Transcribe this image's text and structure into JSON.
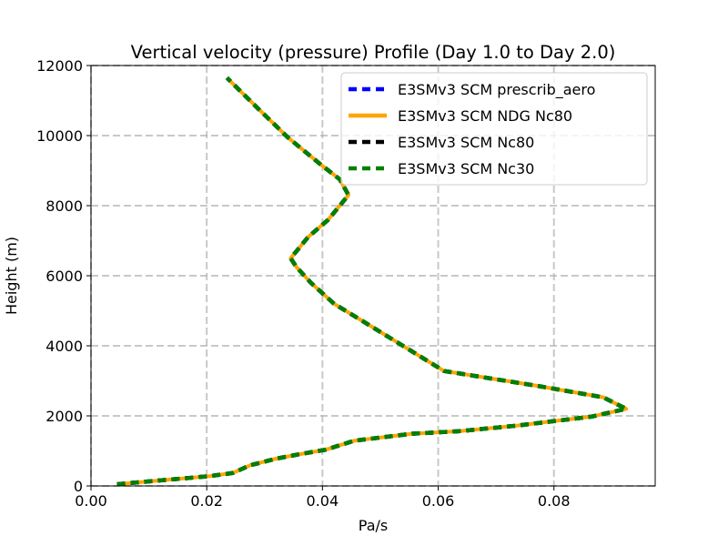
{
  "chart_data": {
    "type": "line",
    "title": "Vertical velocity (pressure) Profile (Day 1.0 to Day 2.0)",
    "xlabel": "Pa/s",
    "ylabel": "Height (m)",
    "xlim": [
      0.0,
      0.0975
    ],
    "ylim": [
      0,
      12000
    ],
    "xticks": [
      0.0,
      0.02,
      0.04,
      0.06,
      0.08
    ],
    "xtick_labels": [
      "0.00",
      "0.02",
      "0.04",
      "0.06",
      "0.08"
    ],
    "yticks": [
      0,
      2000,
      4000,
      6000,
      8000,
      10000,
      12000
    ],
    "ytick_labels": [
      "0",
      "2000",
      "4000",
      "6000",
      "8000",
      "10000",
      "12000"
    ],
    "grid": true,
    "legend_position": "top-right",
    "x": [
      0.0045,
      0.01,
      0.015,
      0.0205,
      0.0245,
      0.0275,
      0.032,
      0.0365,
      0.0405,
      0.043,
      0.0455,
      0.0555,
      0.0635,
      0.0735,
      0.0805,
      0.0865,
      0.0925,
      0.0885,
      0.077,
      0.061,
      0.047,
      0.042,
      0.038,
      0.0355,
      0.0345,
      0.0375,
      0.041,
      0.0435,
      0.0445,
      0.043,
      0.0395,
      0.034,
      0.029,
      0.0235
    ],
    "y": [
      50,
      130,
      200,
      280,
      370,
      590,
      780,
      920,
      1030,
      1160,
      1290,
      1490,
      1560,
      1720,
      1860,
      1980,
      2200,
      2530,
      2860,
      3280,
      4700,
      5200,
      5800,
      6250,
      6500,
      7100,
      7600,
      8100,
      8300,
      8750,
      9200,
      9950,
      10750,
      11650
    ],
    "series": [
      {
        "name": "E3SMv3 SCM prescrib_aero",
        "color": "#0000ff",
        "style": "dashed"
      },
      {
        "name": "E3SMv3 SCM NDG Nc80",
        "color": "#ffa500",
        "style": "solid"
      },
      {
        "name": "E3SMv3 SCM Nc80",
        "color": "#000000",
        "style": "dashed"
      },
      {
        "name": "E3SMv3 SCM Nc30",
        "color": "#008000",
        "style": "dashed"
      }
    ]
  }
}
